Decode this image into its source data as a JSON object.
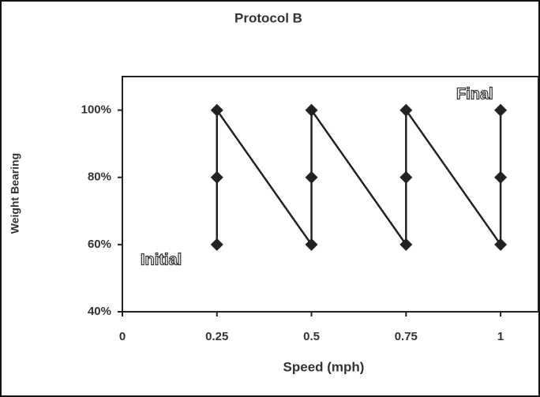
{
  "chart_data": {
    "type": "line",
    "title": "Protocol B",
    "x_label": "Speed (mph)",
    "y_label": "Weight Bearing",
    "annotations": [
      "Initial",
      "Final"
    ],
    "x": [
      0.25,
      0.25,
      0.25,
      0.5,
      0.5,
      0.5,
      0.75,
      0.75,
      0.75,
      1,
      1,
      1
    ],
    "series": [
      {
        "name": "Protocol B",
        "color": "#222222",
        "values": [
          60,
          80,
          100,
          60,
          80,
          100,
          60,
          80,
          100,
          60,
          80,
          100
        ]
      }
    ],
    "xlim": [
      0,
      1.1
    ],
    "xticks": [
      0,
      0.25,
      0.5,
      0.75,
      1
    ],
    "ylim": [
      40,
      110
    ],
    "yticks": [
      {
        "value": 40,
        "label": "40%"
      },
      {
        "value": 60,
        "label": "60%"
      },
      {
        "value": 80,
        "label": "80%"
      },
      {
        "value": 100,
        "label": "100%"
      }
    ],
    "grid": false
  }
}
